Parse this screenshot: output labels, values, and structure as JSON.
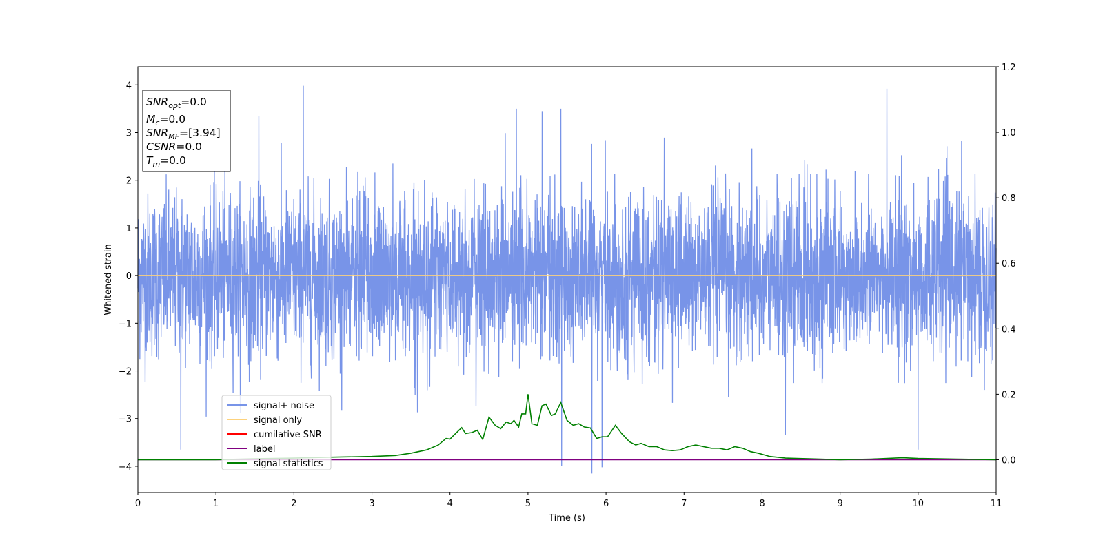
{
  "chart_data": {
    "type": "line",
    "xlabel": "Time (s)",
    "ylabel": "Whitened strain",
    "xlim": [
      0,
      11
    ],
    "ylim": [
      -4.55,
      4.38
    ],
    "ylim_right": [
      -0.1,
      1.2
    ],
    "x_ticks": [
      0,
      1,
      2,
      3,
      4,
      5,
      6,
      7,
      8,
      9,
      10,
      11
    ],
    "y_ticks": [
      4,
      3,
      2,
      1,
      0,
      -1,
      -2,
      -3,
      -4
    ],
    "y_tick_labels": [
      "4",
      "3",
      "2",
      "1",
      "0",
      "−1",
      "−2",
      "−3",
      "−4"
    ],
    "y2_ticks": [
      1.2,
      1.0,
      0.8,
      0.6,
      0.4,
      0.2,
      0.0
    ],
    "y2_tick_labels": [
      "1.2",
      "1.0",
      "0.8",
      "0.6",
      "0.4",
      "0.2",
      "0.0"
    ],
    "grid": false,
    "legend_position": "lower-left",
    "info_box": {
      "snr_opt": {
        "main": "SNR",
        "sub": "opt",
        "value": "=0.0"
      },
      "mc": {
        "main": "M",
        "sub": "c",
        "value": "=0.0"
      },
      "snr_mf": {
        "main": "SNR",
        "sub": "MF",
        "value": "=[3.94]"
      },
      "csnr": {
        "main": "CSNR",
        "value": "=0.0"
      },
      "tm": {
        "main": "T",
        "sub": "m",
        "value": "=0.0"
      }
    },
    "series": [
      {
        "name": "signal+ noise",
        "axis": "left",
        "color": "#7894e8",
        "kind": "noise",
        "sigma": 0.85,
        "peaks": [
          {
            "x": 2.12,
            "y": 3.98
          },
          {
            "x": 9.6,
            "y": 3.92
          },
          {
            "x": 4.85,
            "y": 3.5
          },
          {
            "x": 5.42,
            "y": 3.5
          },
          {
            "x": 5.18,
            "y": 3.45
          },
          {
            "x": 1.55,
            "y": 3.35
          },
          {
            "x": 5.82,
            "y": -4.15
          },
          {
            "x": 5.43,
            "y": -4.0
          },
          {
            "x": 5.95,
            "y": -4.02
          },
          {
            "x": 10.0,
            "y": -3.65
          },
          {
            "x": 0.55,
            "y": -3.65
          },
          {
            "x": 8.3,
            "y": -3.35
          }
        ]
      },
      {
        "name": "signal only",
        "axis": "left",
        "color": "#fdd27c",
        "x": [
          0,
          11
        ],
        "y": [
          0,
          0
        ]
      },
      {
        "name": "cumilative SNR",
        "axis": "left",
        "color": "#ff0000",
        "x": [],
        "y": []
      },
      {
        "name": "label",
        "axis": "right",
        "color": "#800080",
        "x": [
          0,
          11
        ],
        "y": [
          0,
          0
        ]
      },
      {
        "name": "signal statistics",
        "axis": "right",
        "color": "#008000",
        "x": [
          0,
          0.5,
          1.0,
          1.5,
          2.0,
          2.5,
          3.0,
          3.3,
          3.5,
          3.7,
          3.85,
          3.95,
          4.0,
          4.05,
          4.15,
          4.2,
          4.28,
          4.35,
          4.42,
          4.5,
          4.58,
          4.65,
          4.72,
          4.78,
          4.82,
          4.88,
          4.92,
          4.97,
          5.0,
          5.05,
          5.12,
          5.18,
          5.23,
          5.3,
          5.35,
          5.42,
          5.5,
          5.58,
          5.65,
          5.72,
          5.8,
          5.88,
          5.95,
          6.02,
          6.12,
          6.2,
          6.3,
          6.38,
          6.45,
          6.55,
          6.65,
          6.75,
          6.85,
          6.95,
          7.05,
          7.15,
          7.25,
          7.35,
          7.45,
          7.55,
          7.65,
          7.75,
          7.85,
          7.95,
          8.1,
          8.3,
          8.6,
          9.0,
          9.4,
          9.8,
          10.0,
          10.5,
          11.0
        ],
        "y": [
          0.0,
          0.0,
          0.0,
          0.003,
          0.005,
          0.008,
          0.01,
          0.013,
          0.02,
          0.03,
          0.045,
          0.065,
          0.063,
          0.075,
          0.098,
          0.08,
          0.083,
          0.09,
          0.062,
          0.13,
          0.105,
          0.095,
          0.115,
          0.11,
          0.12,
          0.1,
          0.14,
          0.14,
          0.2,
          0.11,
          0.105,
          0.165,
          0.17,
          0.135,
          0.14,
          0.175,
          0.12,
          0.105,
          0.11,
          0.1,
          0.097,
          0.065,
          0.07,
          0.07,
          0.105,
          0.08,
          0.055,
          0.045,
          0.05,
          0.04,
          0.04,
          0.03,
          0.028,
          0.03,
          0.04,
          0.045,
          0.04,
          0.035,
          0.035,
          0.03,
          0.04,
          0.035,
          0.025,
          0.02,
          0.01,
          0.005,
          0.003,
          0.0,
          0.002,
          0.006,
          0.004,
          0.002,
          0.0
        ]
      }
    ]
  }
}
